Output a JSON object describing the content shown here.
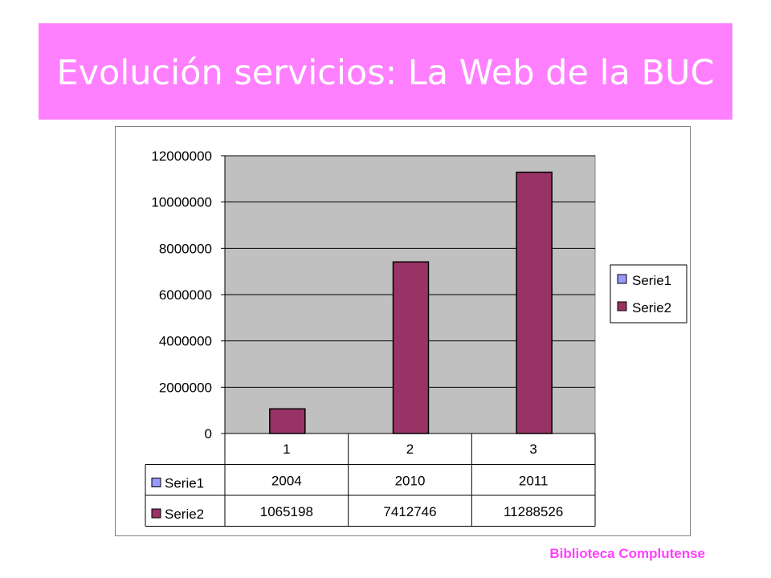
{
  "page": {
    "title": "Evolución servicios: La Web de la BUC",
    "footer": "Biblioteca Complutense"
  },
  "colors": {
    "banner": "#ff80ff",
    "serie1": "#9999ff",
    "serie2": "#993366",
    "plot_area": "#c0c0c0",
    "footer_text": "#ff40ff"
  },
  "chart_data": {
    "type": "bar",
    "categories": [
      "1",
      "2",
      "3"
    ],
    "series": [
      {
        "name": "Serie1",
        "values": [
          2004,
          2010,
          2011
        ]
      },
      {
        "name": "Serie2",
        "values": [
          1065198,
          7412746,
          11288526
        ]
      }
    ],
    "ylim": [
      0,
      12000000
    ],
    "yticks": [
      0,
      2000000,
      4000000,
      6000000,
      8000000,
      10000000,
      12000000
    ],
    "grid": true,
    "legend_position": "right",
    "data_table": {
      "rows": [
        {
          "label": "Serie1",
          "values": [
            "2004",
            "2010",
            "2011"
          ]
        },
        {
          "label": "Serie2",
          "values": [
            "1065198",
            "7412746",
            "11288526"
          ]
        }
      ]
    }
  }
}
